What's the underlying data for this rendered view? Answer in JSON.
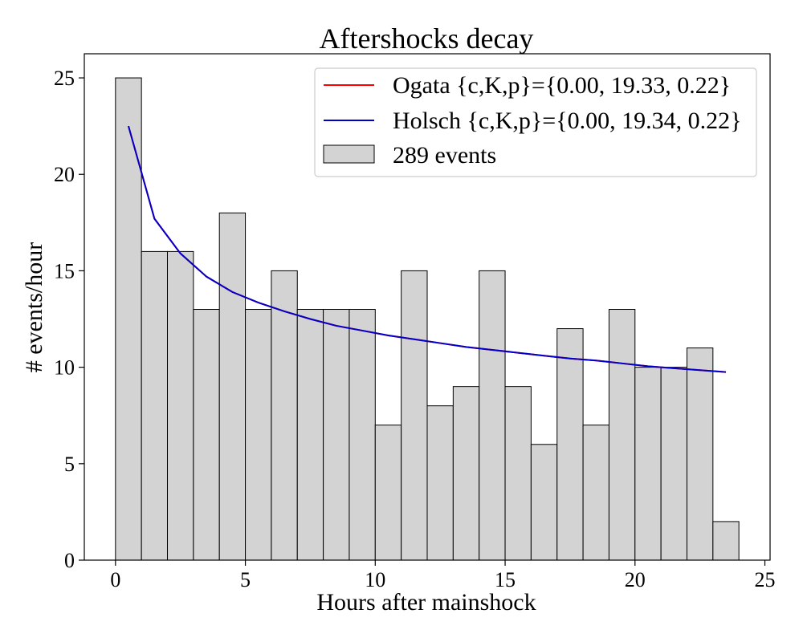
{
  "chart_data": {
    "type": "bar",
    "title": "Aftershocks decay",
    "xlabel": "Hours after mainshock",
    "ylabel": "# events/hour",
    "xlim": [
      -1.2,
      25.2
    ],
    "ylim": [
      0,
      26.25
    ],
    "xticks": [
      0,
      5,
      10,
      15,
      20,
      25
    ],
    "yticks": [
      0,
      5,
      10,
      15,
      20,
      25
    ],
    "histogram": {
      "label": "289 events",
      "bin_edges": [
        0,
        1,
        2,
        3,
        4,
        5,
        6,
        7,
        8,
        9,
        10,
        11,
        12,
        13,
        14,
        15,
        16,
        17,
        18,
        19,
        20,
        21,
        22,
        23,
        24
      ],
      "values": [
        25,
        16,
        16,
        13,
        18,
        13,
        15,
        13,
        13,
        13,
        7,
        15,
        8,
        9,
        15,
        9,
        6,
        12,
        7,
        13,
        10,
        10,
        11,
        2
      ],
      "fill_color": "#d3d3d3",
      "edge_color": "#000000"
    },
    "series": [
      {
        "name": "Ogata {c,K,p}={0.00, 19.33, 0.22}",
        "color": "#ff0000",
        "x": [
          0.5,
          1.5,
          2.5,
          3.5,
          4.5,
          5.5,
          6.5,
          7.5,
          8.5,
          9.5,
          10.5,
          11.5,
          12.5,
          13.5,
          14.5,
          15.5,
          16.5,
          17.5,
          18.5,
          19.5,
          20.5,
          21.5,
          22.5,
          23.5
        ],
        "y": [
          22.5,
          17.7,
          15.9,
          14.7,
          13.9,
          13.35,
          12.9,
          12.5,
          12.15,
          11.9,
          11.65,
          11.45,
          11.25,
          11.05,
          10.9,
          10.75,
          10.6,
          10.45,
          10.35,
          10.2,
          10.05,
          9.95,
          9.85,
          9.75
        ]
      },
      {
        "name": "Holsch {c,K,p}={0.00, 19.34, 0.22}",
        "color": "#0000cc",
        "x": [
          0.5,
          1.5,
          2.5,
          3.5,
          4.5,
          5.5,
          6.5,
          7.5,
          8.5,
          9.5,
          10.5,
          11.5,
          12.5,
          13.5,
          14.5,
          15.5,
          16.5,
          17.5,
          18.5,
          19.5,
          20.5,
          21.5,
          22.5,
          23.5
        ],
        "y": [
          22.5,
          17.7,
          15.9,
          14.7,
          13.9,
          13.35,
          12.9,
          12.5,
          12.15,
          11.9,
          11.65,
          11.45,
          11.25,
          11.05,
          10.9,
          10.75,
          10.6,
          10.45,
          10.35,
          10.2,
          10.05,
          9.95,
          9.85,
          9.75
        ]
      }
    ],
    "legend_placement": "top-right",
    "grid": false
  }
}
